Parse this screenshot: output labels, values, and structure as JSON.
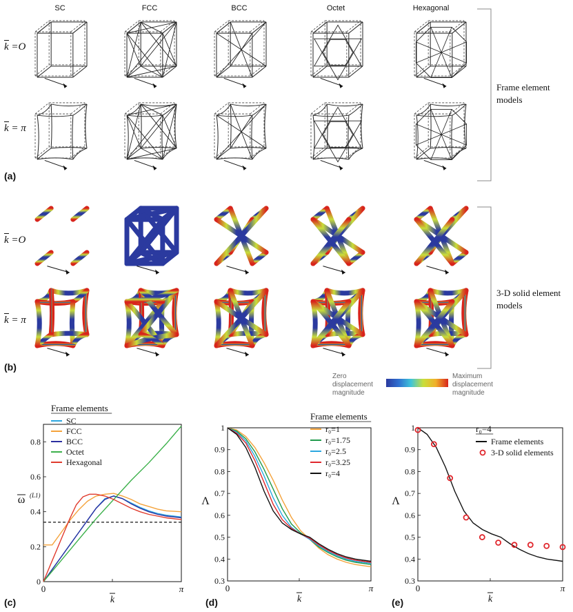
{
  "columns": [
    "SC",
    "FCC",
    "BCC",
    "Octet",
    "Hexagonal"
  ],
  "row_labels": {
    "k0": "k",
    "k0_val": "=O",
    "kpi": "k",
    "kpi_val": "= π"
  },
  "panel_labels": {
    "a": "(a)",
    "b": "(b)",
    "c": "(c)",
    "d": "(d)",
    "e": "(e)"
  },
  "side_labels": {
    "frame": [
      "Frame element",
      "models"
    ],
    "solid": [
      "3-D solid element",
      "models"
    ]
  },
  "colorbar": {
    "low": [
      "Zero",
      "displacement",
      "magnitude"
    ],
    "high": [
      "Maximum",
      "displacement",
      "magnitude"
    ],
    "stops": [
      "#2b3a9f",
      "#2f6fd0",
      "#3fc4d9",
      "#c9de3a",
      "#f0b02a",
      "#d8241c"
    ]
  },
  "chart_data": [
    {
      "type": "line",
      "panel": "(c)",
      "legend_title": "Frame elements",
      "xlabel": "k",
      "ylabel": "ω",
      "ylabel_sup": "(L1)",
      "xlim": [
        0,
        3.1416
      ],
      "ylim": [
        0,
        0.9
      ],
      "yticks": [
        "0",
        "0.2",
        "0.4",
        "0.6",
        "0.8"
      ],
      "xticks": [
        "0",
        "π"
      ],
      "series": [
        {
          "name": "SC",
          "color": "#2aa6e0",
          "x": [
            0,
            0.2,
            0.4,
            0.6,
            0.8,
            1.0,
            1.2,
            1.4,
            1.6,
            1.8,
            2.0,
            2.2,
            2.4,
            2.6,
            2.8,
            3.1416
          ],
          "y": [
            0,
            0.07,
            0.14,
            0.21,
            0.28,
            0.35,
            0.42,
            0.475,
            0.49,
            0.475,
            0.45,
            0.425,
            0.405,
            0.39,
            0.38,
            0.37
          ]
        },
        {
          "name": "FCC",
          "color": "#f4a23a",
          "x": [
            0,
            0.03,
            0.2,
            0.4,
            0.6,
            0.8,
            1.0,
            1.2,
            1.4,
            1.6,
            1.8,
            2.0,
            2.2,
            2.4,
            2.6,
            2.8,
            3.1416
          ],
          "y": [
            0.21,
            0.21,
            0.21,
            0.28,
            0.35,
            0.41,
            0.46,
            0.49,
            0.5,
            0.505,
            0.49,
            0.47,
            0.445,
            0.43,
            0.415,
            0.405,
            0.4
          ]
        },
        {
          "name": "BCC",
          "color": "#2b2fa0",
          "x": [
            0,
            0.2,
            0.4,
            0.6,
            0.8,
            1.0,
            1.2,
            1.4,
            1.6,
            1.8,
            2.0,
            2.2,
            2.4,
            2.6,
            2.8,
            3.1416
          ],
          "y": [
            0,
            0.07,
            0.14,
            0.21,
            0.28,
            0.35,
            0.42,
            0.47,
            0.49,
            0.475,
            0.445,
            0.42,
            0.4,
            0.385,
            0.375,
            0.365
          ]
        },
        {
          "name": "Octet",
          "color": "#3bb04a",
          "x": [
            0,
            0.4,
            0.8,
            1.2,
            1.6,
            2.0,
            2.4,
            2.8,
            3.1416
          ],
          "y": [
            0,
            0.12,
            0.24,
            0.36,
            0.47,
            0.58,
            0.68,
            0.79,
            0.89
          ]
        },
        {
          "name": "Hexagonal",
          "color": "#e03a2c",
          "x": [
            0,
            0.15,
            0.3,
            0.45,
            0.6,
            0.75,
            0.9,
            1.05,
            1.2,
            1.4,
            1.6,
            1.8,
            2.0,
            2.2,
            2.4,
            2.6,
            2.8,
            3.1416
          ],
          "y": [
            0,
            0.09,
            0.18,
            0.27,
            0.36,
            0.44,
            0.485,
            0.5,
            0.5,
            0.49,
            0.47,
            0.445,
            0.42,
            0.4,
            0.385,
            0.375,
            0.365,
            0.355
          ]
        }
      ],
      "reference": {
        "y": 0.34,
        "style": "dashed"
      }
    },
    {
      "type": "line",
      "panel": "(d)",
      "legend_title": "Frame elements",
      "xlabel": "k",
      "ylabel": "Λ",
      "xlim": [
        0,
        3.1416
      ],
      "ylim": [
        0.3,
        1.0
      ],
      "yticks": [
        "0.3",
        "0.4",
        "0.5",
        "0.6",
        "0.7",
        "0.8",
        "0.9",
        "1"
      ],
      "xticks": [
        "0",
        "π"
      ],
      "series": [
        {
          "name": "r0=1",
          "label": "r₀=1",
          "color": "#f4a23a",
          "x": [
            0,
            0.2,
            0.4,
            0.6,
            0.8,
            1.0,
            1.2,
            1.4,
            1.6,
            1.8,
            2.0,
            2.2,
            2.4,
            2.6,
            2.8,
            3.1416
          ],
          "y": [
            1,
            0.99,
            0.96,
            0.91,
            0.84,
            0.76,
            0.67,
            0.59,
            0.53,
            0.49,
            0.45,
            0.42,
            0.4,
            0.385,
            0.375,
            0.365
          ]
        },
        {
          "name": "r0=1.75",
          "label": "r₀=1.75",
          "color": "#1f9a4b",
          "x": [
            0,
            0.2,
            0.4,
            0.6,
            0.8,
            1.0,
            1.2,
            1.4,
            1.6,
            1.8,
            2.0,
            2.2,
            2.4,
            2.6,
            2.8,
            3.1416
          ],
          "y": [
            1,
            0.985,
            0.95,
            0.89,
            0.81,
            0.72,
            0.63,
            0.56,
            0.52,
            0.49,
            0.455,
            0.43,
            0.41,
            0.395,
            0.385,
            0.375
          ]
        },
        {
          "name": "r0=2.5",
          "label": "r₀=2.5",
          "color": "#2aa6e0",
          "x": [
            0,
            0.2,
            0.4,
            0.6,
            0.8,
            1.0,
            1.2,
            1.4,
            1.6,
            1.8,
            2.0,
            2.2,
            2.4,
            2.6,
            2.8,
            3.1416
          ],
          "y": [
            1,
            0.98,
            0.94,
            0.87,
            0.78,
            0.68,
            0.6,
            0.545,
            0.515,
            0.49,
            0.46,
            0.435,
            0.415,
            0.4,
            0.39,
            0.38
          ]
        },
        {
          "name": "r0=3.25",
          "label": "r₀=3.25",
          "color": "#e0262c",
          "x": [
            0,
            0.2,
            0.4,
            0.6,
            0.8,
            1.0,
            1.2,
            1.4,
            1.6,
            1.8,
            2.0,
            2.2,
            2.4,
            2.6,
            2.8,
            3.1416
          ],
          "y": [
            1,
            0.975,
            0.93,
            0.85,
            0.75,
            0.65,
            0.58,
            0.54,
            0.515,
            0.495,
            0.465,
            0.44,
            0.42,
            0.405,
            0.395,
            0.385
          ]
        },
        {
          "name": "r0=4",
          "label": "r₀=4",
          "color": "#111111",
          "x": [
            0,
            0.2,
            0.4,
            0.6,
            0.8,
            1.0,
            1.2,
            1.4,
            1.6,
            1.8,
            2.0,
            2.2,
            2.4,
            2.6,
            2.8,
            3.1416
          ],
          "y": [
            1,
            0.97,
            0.91,
            0.82,
            0.71,
            0.62,
            0.565,
            0.535,
            0.515,
            0.5,
            0.47,
            0.445,
            0.425,
            0.41,
            0.4,
            0.39
          ]
        }
      ]
    },
    {
      "type": "line",
      "panel": "(e)",
      "legend_title": "r₀=4",
      "xlabel": "k",
      "ylabel": "Λ",
      "xlim": [
        0,
        3.1416
      ],
      "ylim": [
        0.3,
        1.0
      ],
      "yticks": [
        "0.3",
        "0.4",
        "0.5",
        "0.6",
        "0.7",
        "0.8",
        "0.9",
        "1"
      ],
      "xticks": [
        "0",
        "π"
      ],
      "series": [
        {
          "name": "Frame elements",
          "color": "#111111",
          "x": [
            0,
            0.2,
            0.4,
            0.6,
            0.8,
            1.0,
            1.2,
            1.4,
            1.6,
            1.8,
            2.0,
            2.2,
            2.4,
            2.6,
            2.8,
            3.1416
          ],
          "y": [
            1,
            0.97,
            0.91,
            0.82,
            0.71,
            0.62,
            0.565,
            0.535,
            0.515,
            0.5,
            0.47,
            0.445,
            0.425,
            0.41,
            0.4,
            0.39
          ]
        },
        {
          "name": "3-D solid elements",
          "color": "#e0262c",
          "marker": "circle",
          "x": [
            0,
            0.349,
            0.698,
            1.047,
            1.396,
            1.745,
            2.094,
            2.443,
            2.793,
            3.1416
          ],
          "y": [
            0.99,
            0.925,
            0.77,
            0.59,
            0.5,
            0.475,
            0.465,
            0.465,
            0.46,
            0.455
          ]
        }
      ]
    }
  ]
}
